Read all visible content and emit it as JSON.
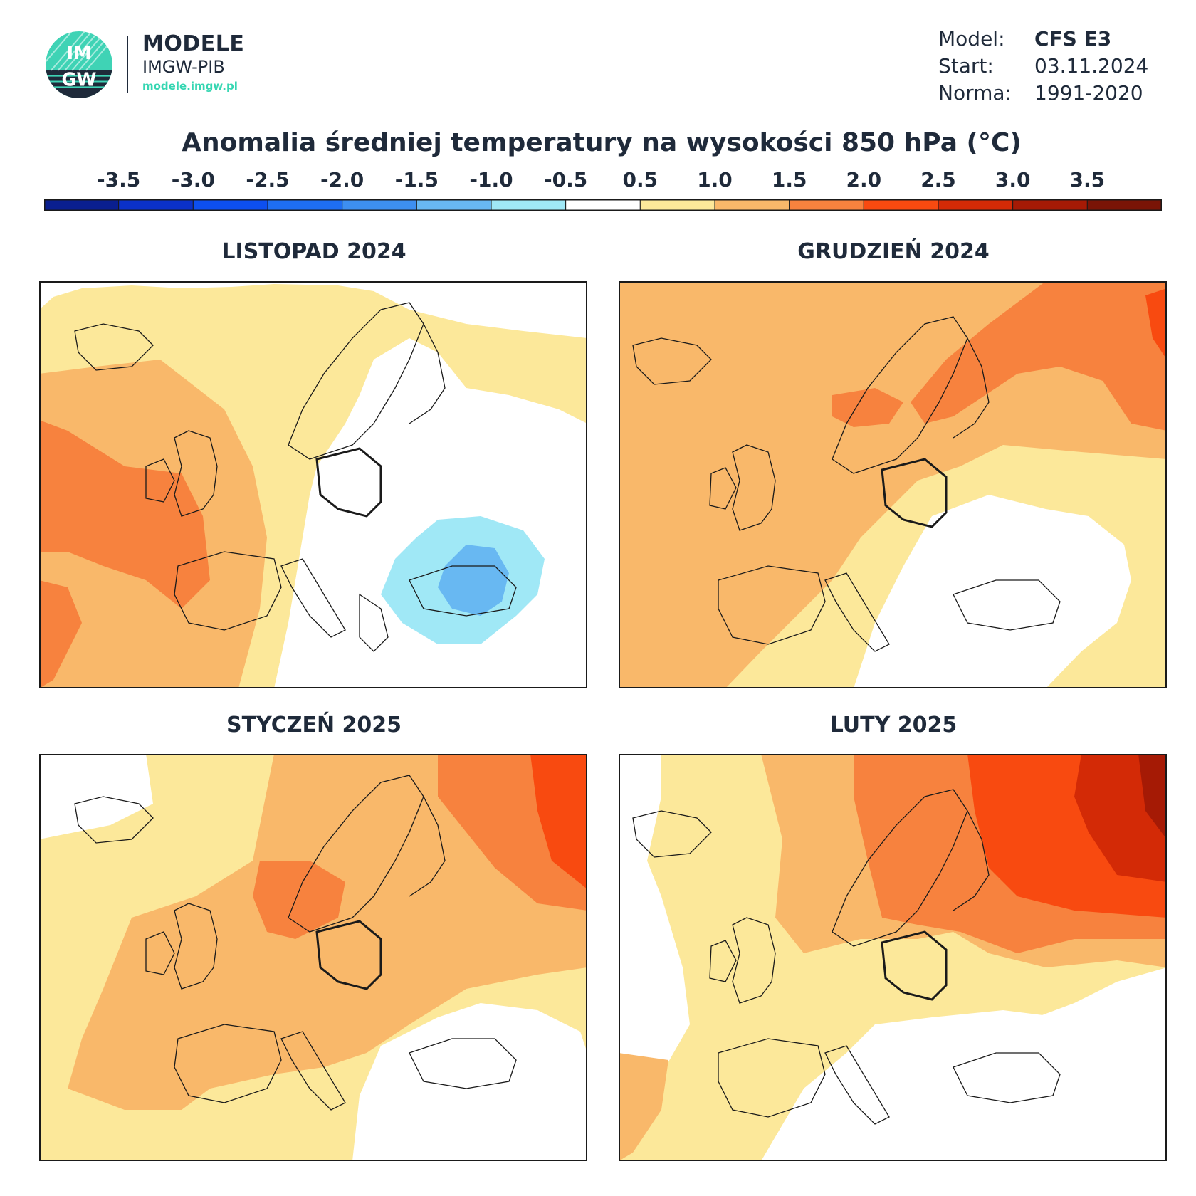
{
  "header": {
    "logo_text": "IMGW",
    "brand_title": "MODELE",
    "brand_subtitle": "IMGW-PIB",
    "brand_url": "modele.imgw.pl"
  },
  "meta": {
    "model_label": "Model:",
    "model_value": "CFS E3",
    "start_label": "Start:",
    "start_value": "03.11.2024",
    "norm_label": "Norma:",
    "norm_value": "1991-2020"
  },
  "title": "Anomalia średniej temperatury na wysokości 850 hPa (°C)",
  "colorbar": {
    "tick_labels": [
      "-3.5",
      "-3.0",
      "-2.5",
      "-2.0",
      "-1.5",
      "-1.0",
      "-0.5",
      "0.5",
      "1.0",
      "1.5",
      "2.0",
      "2.5",
      "3.0",
      "3.5"
    ],
    "colors": [
      "#0a1f8f",
      "#0b31c9",
      "#0d4ff0",
      "#1e6ef2",
      "#3d8ff0",
      "#68b8f2",
      "#a0e8f6",
      "#ffffff",
      "#fce89a",
      "#f9b86a",
      "#f7823e",
      "#f84a10",
      "#d32a06",
      "#a51a05",
      "#7a1406"
    ]
  },
  "panels": [
    {
      "title": "LISTOPAD 2024",
      "dominant_color": "#ffffff",
      "hotspot_color": "#a0e8f6"
    },
    {
      "title": "GRUDZIEŃ 2024",
      "dominant_color": "#f9b86a",
      "hotspot_color": "#f7823e"
    },
    {
      "title": "STYCZEŃ 2025",
      "dominant_color": "#f9b86a",
      "hotspot_color": "#f84a10"
    },
    {
      "title": "LUTY 2025",
      "dominant_color": "#fce89a",
      "hotspot_color": "#d32a06"
    }
  ]
}
